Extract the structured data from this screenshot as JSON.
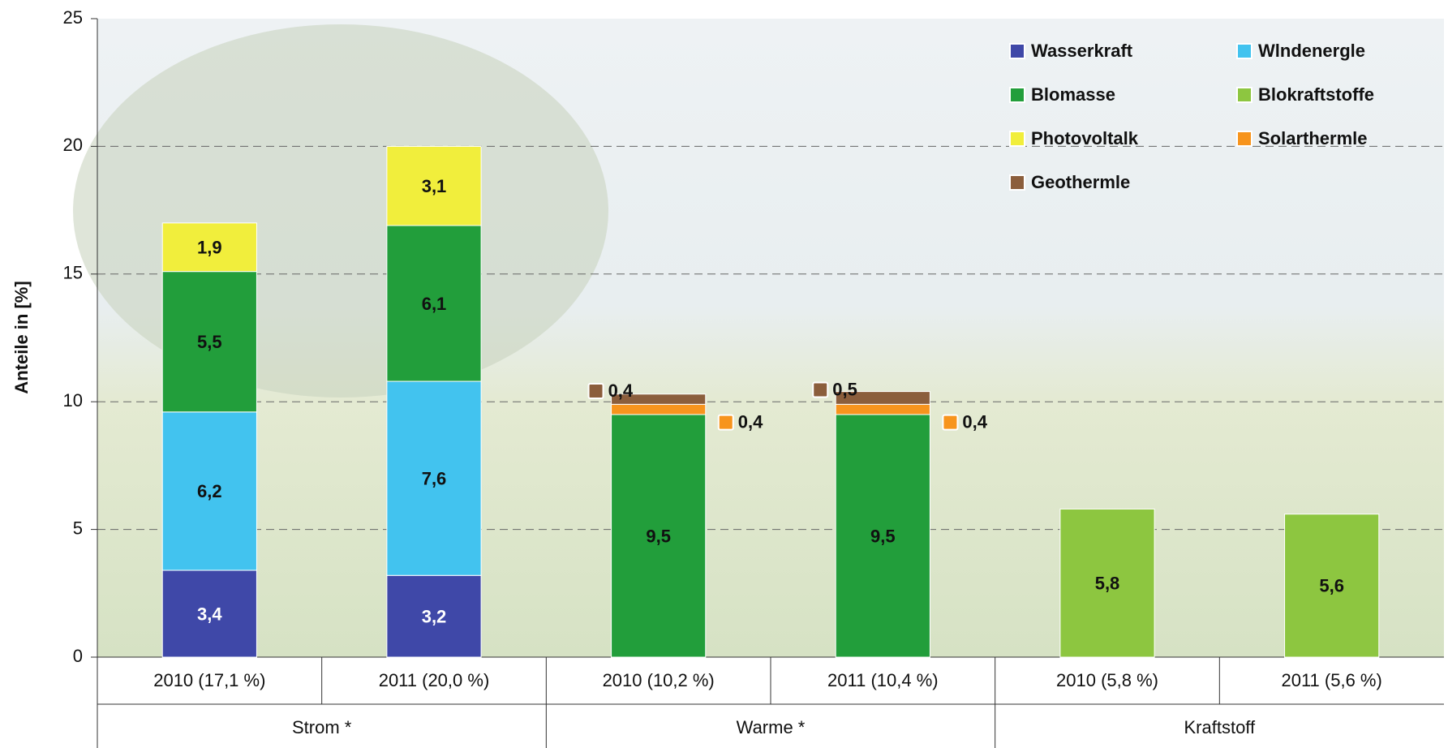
{
  "chart_data": {
    "type": "bar",
    "stacked": true,
    "y_label": "Anteile in [%]",
    "categories": [
      "2010 (17,1 %)",
      "2011 (20,0 %)",
      "2010 (10,2 %)",
      "2011 (10,4 %)",
      "2010 (5,8 %)",
      "2011 (5,6 %)"
    ],
    "groups": [
      "Strom *",
      "Warme *",
      "Kraftstoff"
    ],
    "ylim": [
      0,
      25
    ],
    "yticks": [
      0,
      5,
      10,
      15,
      20,
      25
    ],
    "grid": true,
    "series": [
      {
        "name": "Wasserkraft",
        "color": "#3f48a8",
        "values": [
          3.4,
          3.2,
          null,
          null,
          null,
          null
        ],
        "value_labels": [
          "3,4",
          "3,2",
          null,
          null,
          null,
          null
        ]
      },
      {
        "name": "Wlndenergle",
        "color": "#42c3ef",
        "values": [
          6.2,
          7.6,
          null,
          null,
          null,
          null
        ],
        "value_labels": [
          "6,2",
          "7,6",
          null,
          null,
          null,
          null
        ]
      },
      {
        "name": "Blomasse",
        "color": "#229e3b",
        "values": [
          5.5,
          6.1,
          9.5,
          9.5,
          null,
          null
        ],
        "value_labels": [
          "5,5",
          "6,1",
          "9,5",
          "9,5",
          null,
          null
        ]
      },
      {
        "name": "Blokraftstoffe",
        "color": "#8dc640",
        "values": [
          null,
          null,
          null,
          null,
          5.8,
          5.6
        ],
        "value_labels": [
          null,
          null,
          null,
          null,
          "5,8",
          "5,6"
        ]
      },
      {
        "name": "Photovoltalk",
        "color": "#f1ee3c",
        "values": [
          1.9,
          3.1,
          null,
          null,
          null,
          null
        ],
        "value_labels": [
          "1,9",
          "3,1",
          null,
          null,
          null,
          null
        ]
      },
      {
        "name": "Solarthermle",
        "color": "#f7941d",
        "values": [
          null,
          null,
          0.4,
          0.4,
          null,
          null
        ],
        "value_labels": [
          null,
          null,
          "0,4",
          "0,4",
          null,
          null
        ]
      },
      {
        "name": "Geothermle",
        "color": "#8b5e3c",
        "values": [
          null,
          null,
          0.4,
          0.5,
          null,
          null
        ],
        "value_labels": [
          null,
          null,
          "0,4",
          "0,5",
          null,
          null
        ]
      }
    ]
  }
}
